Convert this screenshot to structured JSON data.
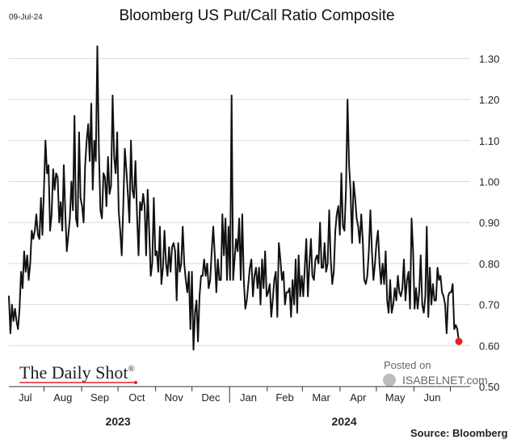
{
  "header": {
    "date": "09-Jul-24",
    "title": "Bloomberg US Put/Call Ratio Composite"
  },
  "footer": {
    "brand": "The Daily Shot",
    "brand_mark": "®",
    "posted_on": "Posted on",
    "site": "ISABELNET.com",
    "source": "Source: Bloomberg"
  },
  "colors": {
    "line": "#111111",
    "last_point": "#e8202a",
    "grid": "#d9d9d9",
    "watermark": "#9a9a9a"
  },
  "chart_data": {
    "type": "line",
    "title": "Bloomberg US Put/Call Ratio Composite",
    "xlabel": "",
    "ylabel": "",
    "ylim": [
      0.5,
      1.35
    ],
    "yticks": [
      "0.50",
      "0.60",
      "0.70",
      "0.80",
      "0.90",
      "1.00",
      "1.10",
      "1.20",
      "1.30"
    ],
    "y_axis_side": "right",
    "grid": "horizontal",
    "x_month_labels": [
      "Jul",
      "Aug",
      "Sep",
      "Oct",
      "Nov",
      "Dec",
      "Jan",
      "Feb",
      "Mar",
      "Apr",
      "May",
      "Jun"
    ],
    "x_year_labels": [
      "2023",
      "2024"
    ],
    "x_start": "2023-07-03",
    "x_end": "2024-07-08",
    "last_point_marker": true,
    "series": [
      {
        "values": [
          0.72,
          0.63,
          0.7,
          0.66,
          0.69,
          0.66,
          0.64,
          0.69,
          0.78,
          0.74,
          0.83,
          0.78,
          0.82,
          0.76,
          0.8,
          0.88,
          0.86,
          0.88,
          0.92,
          0.87,
          0.86,
          0.96,
          0.87,
          0.98,
          1.1,
          1.02,
          1.04,
          0.88,
          0.92,
          1.03,
          0.98,
          1.02,
          1.01,
          0.9,
          0.95,
          0.88,
          1.04,
          0.92,
          0.83,
          0.87,
          0.91,
          1.0,
          0.93,
          1.16,
          0.91,
          0.89,
          1.12,
          0.96,
          0.94,
          0.9,
          1.04,
          1.1,
          1.14,
          1.05,
          1.19,
          0.98,
          1.1,
          1.05,
          1.33,
          1.08,
          0.93,
          0.91,
          1.02,
          1.01,
          0.94,
          1.06,
          0.97,
          0.99,
          1.21,
          1.06,
          1.02,
          1.12,
          0.93,
          0.88,
          0.82,
          0.94,
          1.08,
          1.03,
          0.97,
          0.9,
          1.1,
          0.98,
          0.96,
          1.05,
          0.92,
          0.82,
          0.95,
          0.93,
          0.97,
          0.94,
          0.82,
          0.98,
          0.88,
          0.77,
          0.8,
          0.96,
          0.82,
          0.83,
          0.78,
          0.89,
          0.75,
          0.79,
          0.88,
          0.8,
          0.77,
          0.84,
          0.78,
          0.84,
          0.85,
          0.83,
          0.71,
          0.85,
          0.78,
          0.8,
          0.89,
          0.8,
          0.76,
          0.73,
          0.78,
          0.64,
          0.78,
          0.59,
          0.68,
          0.71,
          0.61,
          0.72,
          0.77,
          0.77,
          0.81,
          0.77,
          0.8,
          0.74,
          0.76,
          0.83,
          0.89,
          0.82,
          0.73,
          0.81,
          0.76,
          0.76,
          0.92,
          0.82,
          0.91,
          0.76,
          0.89,
          0.76,
          1.21,
          0.76,
          0.81,
          0.86,
          0.83,
          0.91,
          0.76,
          0.92,
          0.76,
          0.69,
          0.71,
          0.75,
          0.79,
          0.81,
          0.72,
          0.77,
          0.79,
          0.74,
          0.79,
          0.7,
          0.81,
          0.74,
          0.83,
          0.72,
          0.73,
          0.75,
          0.67,
          0.71,
          0.76,
          0.78,
          0.67,
          0.85,
          0.81,
          0.76,
          0.78,
          0.7,
          0.73,
          0.73,
          0.74,
          0.67,
          0.76,
          0.7,
          0.81,
          0.68,
          0.82,
          0.72,
          0.77,
          0.72,
          0.79,
          0.86,
          0.72,
          0.8,
          0.86,
          0.77,
          0.76,
          0.81,
          0.82,
          0.8,
          0.9,
          0.79,
          0.79,
          0.85,
          0.78,
          0.8,
          0.93,
          0.81,
          0.75,
          0.78,
          0.88,
          0.92,
          0.94,
          0.87,
          1.02,
          0.89,
          0.88,
          0.98,
          1.2,
          1.04,
          0.98,
          0.85,
          1.0,
          0.96,
          0.91,
          0.89,
          0.85,
          0.92,
          0.86,
          0.76,
          0.75,
          0.77,
          0.83,
          0.93,
          0.83,
          0.76,
          0.8,
          0.85,
          0.88,
          0.8,
          0.75,
          0.8,
          0.75,
          0.83,
          0.71,
          0.68,
          0.76,
          0.68,
          0.7,
          0.74,
          0.71,
          0.77,
          0.73,
          0.72,
          0.74,
          0.81,
          0.71,
          0.76,
          0.78,
          0.69,
          0.91,
          0.83,
          0.69,
          0.74,
          0.69,
          0.73,
          0.82,
          0.7,
          0.68,
          0.72,
          0.89,
          0.67,
          0.79,
          0.7,
          0.75,
          0.71,
          0.71,
          0.79,
          0.76,
          0.77,
          0.73,
          0.72,
          0.7,
          0.63,
          0.72,
          0.73,
          0.73,
          0.75,
          0.64,
          0.65,
          0.64,
          0.61
        ]
      }
    ]
  }
}
